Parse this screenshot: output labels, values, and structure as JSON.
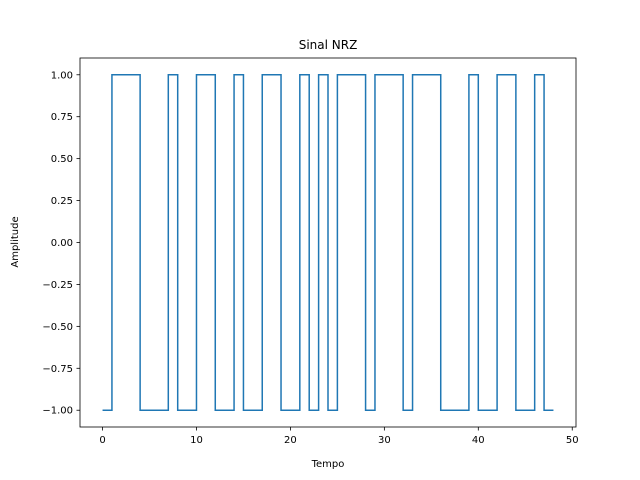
{
  "chart_data": {
    "type": "line",
    "title": "Sinal NRZ",
    "xlabel": "Tempo",
    "ylabel": "Amplitude",
    "xlim": [
      -2.4,
      50.4
    ],
    "ylim": [
      -1.1,
      1.1
    ],
    "xticks": [
      0,
      10,
      20,
      30,
      40,
      50
    ],
    "xtick_labels": [
      "0",
      "10",
      "20",
      "30",
      "40",
      "50"
    ],
    "yticks": [
      -1.0,
      -0.75,
      -0.5,
      -0.25,
      0.0,
      0.25,
      0.5,
      0.75,
      1.0
    ],
    "ytick_labels": [
      "−1.00",
      "−0.75",
      "−0.50",
      "−0.25",
      "0.00",
      "0.25",
      "0.50",
      "0.75",
      "1.00"
    ],
    "grid": false,
    "series": [
      {
        "color": "#1f77b4",
        "step": "post",
        "x": [
          0,
          1,
          2,
          3,
          4,
          5,
          6,
          7,
          8,
          9,
          10,
          11,
          12,
          13,
          14,
          15,
          16,
          17,
          18,
          19,
          20,
          21,
          22,
          23,
          24,
          25,
          26,
          27,
          28,
          29,
          30,
          31,
          32,
          33,
          34,
          35,
          36,
          37,
          38,
          39,
          40,
          41,
          42,
          43,
          44,
          45,
          46,
          47,
          48
        ],
        "values": [
          -1,
          1,
          1,
          1,
          -1,
          -1,
          -1,
          1,
          -1,
          -1,
          1,
          1,
          -1,
          -1,
          1,
          -1,
          -1,
          1,
          1,
          -1,
          -1,
          1,
          -1,
          1,
          -1,
          1,
          1,
          1,
          -1,
          1,
          1,
          1,
          -1,
          1,
          1,
          1,
          -1,
          -1,
          -1,
          1,
          -1,
          -1,
          1,
          1,
          -1,
          -1,
          1,
          -1,
          -1
        ]
      }
    ]
  }
}
